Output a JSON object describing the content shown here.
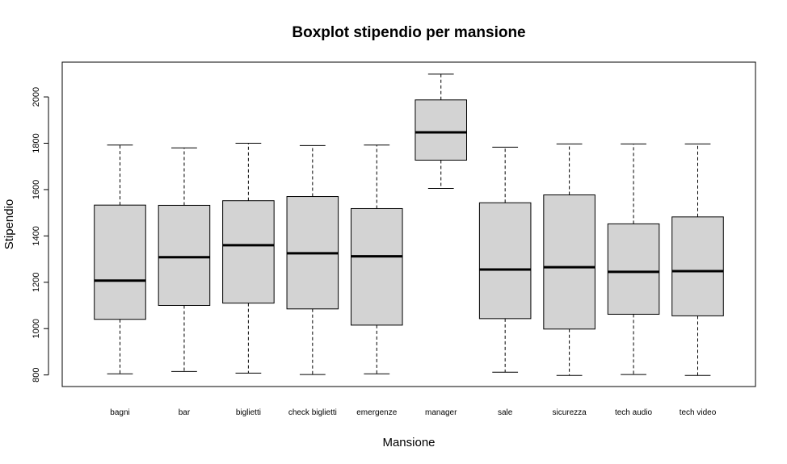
{
  "chart_data": {
    "type": "boxplot",
    "title": "Boxplot stipendio per mansione",
    "xlabel": "Mansione",
    "ylabel": "Stipendio",
    "ylim": [
      750,
      2150
    ],
    "yticks": [
      800,
      1000,
      1200,
      1400,
      1600,
      1800,
      2000
    ],
    "grid": false,
    "box_fill": "#d3d3d3",
    "categories": [
      "bagni",
      "bar",
      "biglietti",
      "check biglietti",
      "emergenze",
      "manager",
      "sale",
      "sicurezza",
      "tech audio",
      "tech video"
    ],
    "boxes": [
      {
        "min": 805,
        "q1": 1040,
        "median": 1207,
        "q3": 1533,
        "max": 1792
      },
      {
        "min": 815,
        "q1": 1100,
        "median": 1308,
        "q3": 1532,
        "max": 1780
      },
      {
        "min": 808,
        "q1": 1110,
        "median": 1360,
        "q3": 1552,
        "max": 1800
      },
      {
        "min": 802,
        "q1": 1085,
        "median": 1325,
        "q3": 1570,
        "max": 1790
      },
      {
        "min": 805,
        "q1": 1015,
        "median": 1312,
        "q3": 1518,
        "max": 1792
      },
      {
        "min": 1605,
        "q1": 1727,
        "median": 1847,
        "q3": 1987,
        "max": 2098
      },
      {
        "min": 812,
        "q1": 1043,
        "median": 1255,
        "q3": 1543,
        "max": 1783
      },
      {
        "min": 798,
        "q1": 998,
        "median": 1265,
        "q3": 1577,
        "max": 1797
      },
      {
        "min": 802,
        "q1": 1062,
        "median": 1245,
        "q3": 1452,
        "max": 1797
      },
      {
        "min": 798,
        "q1": 1055,
        "median": 1248,
        "q3": 1482,
        "max": 1797
      }
    ]
  }
}
